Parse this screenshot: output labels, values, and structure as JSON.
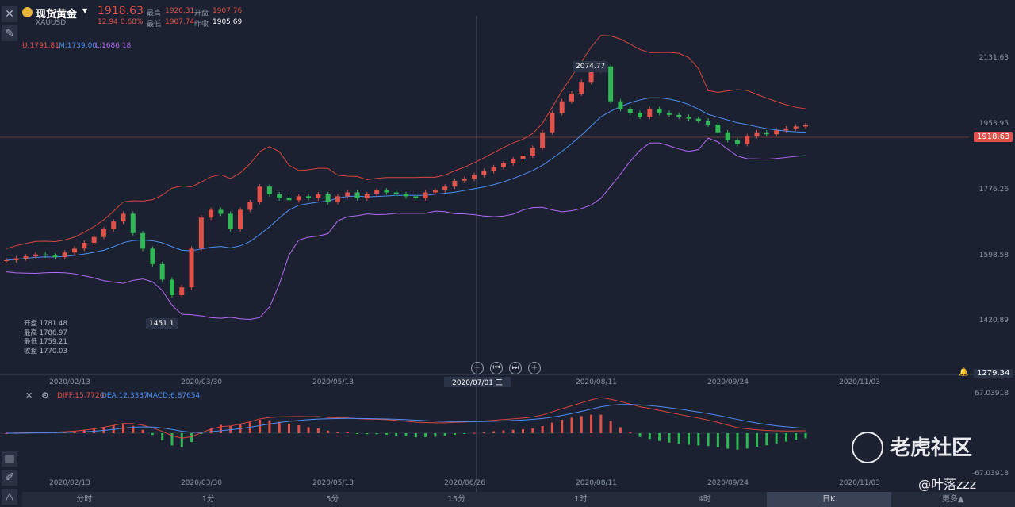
{
  "header": {
    "title": "现货黄金",
    "symbol": "XAUUSD",
    "price": "1918.63",
    "change": "12.94",
    "change_pct": "0.68%",
    "high_label": "最高",
    "high": "1920.31",
    "open_label": "开盘",
    "open": "1907.76",
    "low_label": "最低",
    "low": "1907.74",
    "prev_close_label": "昨收",
    "prev_close": "1905.69"
  },
  "boll_legend": {
    "u": "U:1791.81",
    "m": "M:1739.00",
    "l": "L:1686.18"
  },
  "price_axis": [
    "2131.63",
    "1953.95",
    "1776.26",
    "1598.58",
    "1420.89"
  ],
  "current_price_tag": "1918.63",
  "crosshair_price_tag": "1279.34",
  "max_label": "2074.77",
  "min_label": "1451.1",
  "ohlc_panel": {
    "open": "开盘 1781.48",
    "high": "最高 1786.97",
    "low": "最低 1759.21",
    "close": "收盘 1770.03"
  },
  "x_axis_main": [
    "2020/02/13",
    "2020/03/30",
    "2020/05/13",
    "2020/08/11",
    "2020/09/24",
    "2020/11/03"
  ],
  "crosshair_date": "2020/07/01 三",
  "macd_legend": {
    "diff": "DIFF:15.7720",
    "dea": "DEA:12.3337",
    "macd": "MACD:6.87654"
  },
  "macd_axis": {
    "top": "67.03918",
    "bottom": "-67.03918"
  },
  "x_axis_macd": [
    "2020/02/13",
    "2020/03/30",
    "2020/05/13",
    "2020/06/26",
    "2020/08/11",
    "2020/09/24",
    "2020/11/03"
  ],
  "timeframes": [
    "分时",
    "1分",
    "5分",
    "15分",
    "1时",
    "4时",
    "日K",
    "更多▲"
  ],
  "active_timeframe": "日K",
  "watermark": {
    "brand": "老虎社区",
    "user": "@叶落zzz"
  },
  "colors": {
    "up": "#e0514a",
    "down": "#2fb855",
    "boll_mid": "#4f8ef0",
    "boll_low": "#b26af0",
    "bg": "#1b2130"
  },
  "chart_data": {
    "type": "candlestick",
    "title": "",
    "ylim": [
      1279.34,
      2180
    ],
    "max": 2074.77,
    "min": 1451.1,
    "current": 1918.63,
    "close_series": [
      1570,
      1575,
      1580,
      1585,
      1582,
      1578,
      1590,
      1600,
      1615,
      1630,
      1650,
      1670,
      1690,
      1640,
      1600,
      1560,
      1520,
      1480,
      1500,
      1600,
      1680,
      1700,
      1690,
      1650,
      1700,
      1720,
      1760,
      1740,
      1730,
      1725,
      1735,
      1730,
      1740,
      1720,
      1735,
      1745,
      1730,
      1740,
      1750,
      1745,
      1740,
      1735,
      1730,
      1745,
      1750,
      1760,
      1775,
      1780,
      1790,
      1800,
      1810,
      1820,
      1830,
      1840,
      1860,
      1900,
      1950,
      1980,
      2000,
      2030,
      2060,
      2070,
      1980,
      1960,
      1950,
      1940,
      1960,
      1950,
      1945,
      1940,
      1935,
      1930,
      1920,
      1900,
      1880,
      1870,
      1890,
      1900,
      1895,
      1905,
      1910,
      1915,
      1918.63
    ],
    "macd": {
      "diff_end": 15.772,
      "dea_end": 12.3337,
      "macd_end": 6.87654,
      "range": [
        -67.03918,
        67.03918
      ]
    }
  }
}
